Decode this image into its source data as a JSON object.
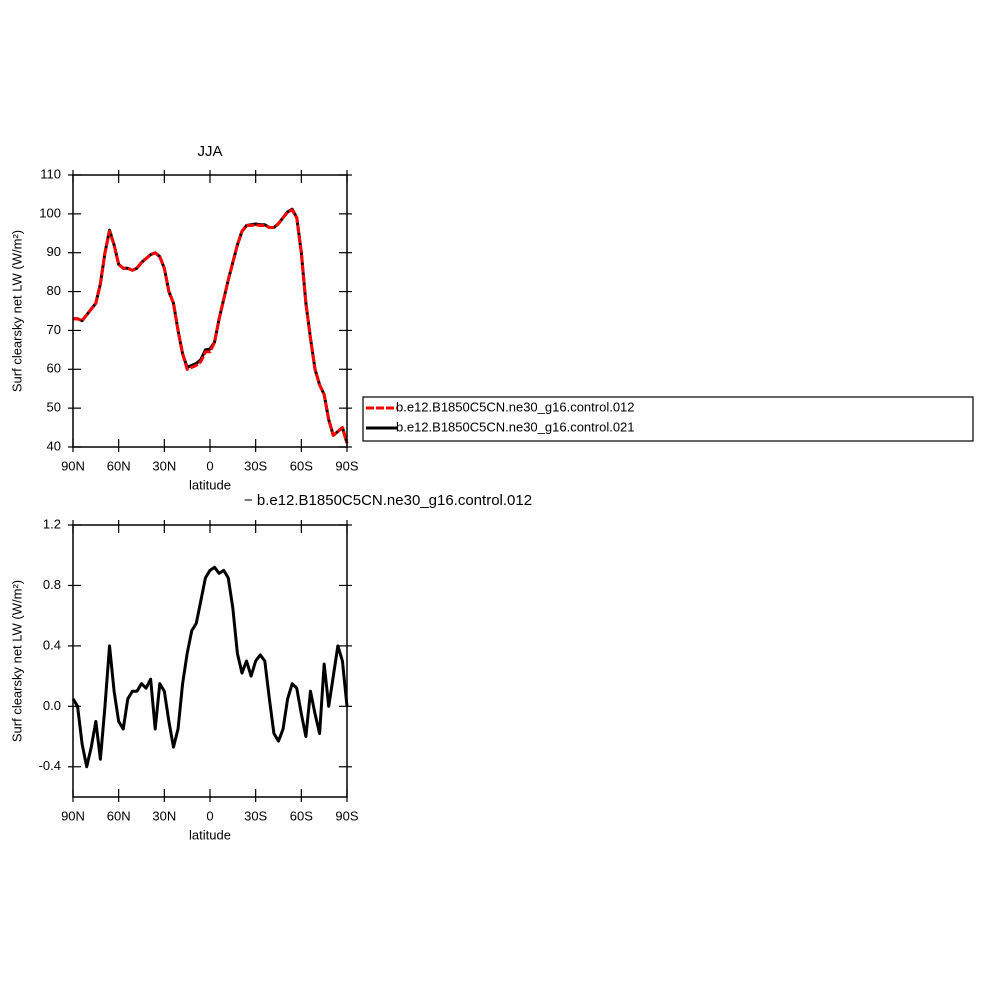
{
  "chart_data": [
    {
      "type": "line",
      "title": "JJA",
      "x_label": "latitude",
      "y_label": "Surf clearsky net LW (W/m²)",
      "x": [
        90,
        87,
        84,
        81,
        78,
        75,
        72,
        69,
        66,
        63,
        60,
        57,
        54,
        51,
        48,
        45,
        42,
        39,
        36,
        33,
        30,
        27,
        24,
        21,
        18,
        15,
        12,
        9,
        6,
        3,
        0,
        -3,
        -6,
        -9,
        -12,
        -15,
        -18,
        -21,
        -24,
        -27,
        -30,
        -33,
        -36,
        -39,
        -42,
        -45,
        -48,
        -51,
        -54,
        -57,
        -60,
        -63,
        -66,
        -69,
        -72,
        -75,
        -78,
        -81,
        -84,
        -87,
        -90
      ],
      "xlim": [
        90,
        -90
      ],
      "xticks": [
        {
          "value": 90,
          "label": "90N"
        },
        {
          "value": 60,
          "label": "60N"
        },
        {
          "value": 30,
          "label": "30N"
        },
        0,
        {
          "value": -30,
          "label": "30S"
        },
        {
          "value": -60,
          "label": "60S"
        },
        {
          "value": -90,
          "label": "90S"
        }
      ],
      "ylim": [
        40,
        110
      ],
      "yticks": [
        40,
        50,
        60,
        70,
        80,
        90,
        100,
        110
      ],
      "legend": "right",
      "series": [
        {
          "name": "b.e12.B1850C5CN.ne30_g16.control.012",
          "color": "#ff0000",
          "style": "dashed",
          "values": [
            73,
            73,
            72.5,
            74,
            75.5,
            77,
            82,
            90,
            95.5,
            92,
            87,
            86,
            86,
            85.5,
            86,
            87.5,
            88.5,
            89.5,
            90,
            89,
            86,
            80,
            77,
            70,
            64,
            60,
            60.5,
            61,
            62,
            64.5,
            64.5,
            67,
            73,
            78,
            83,
            87.5,
            92,
            95.5,
            97,
            97,
            97.2,
            97,
            97,
            96.5,
            96.5,
            97.5,
            99,
            100.5,
            101,
            99,
            90,
            77,
            68,
            60,
            56,
            53.5,
            47,
            43,
            44,
            45,
            41
          ]
        },
        {
          "name": "b.e12.B1850C5CN.ne30_g16.control.021",
          "color": "#000000",
          "style": "solid",
          "values": [
            73,
            73,
            72.5,
            74,
            75.5,
            77,
            82,
            90,
            95.8,
            92,
            87,
            86,
            86,
            85.5,
            86,
            87.5,
            88.5,
            89.5,
            90,
            89,
            86,
            80,
            77,
            70,
            64,
            60.5,
            61,
            61.5,
            62.5,
            65,
            65.2,
            67,
            73,
            78,
            83,
            87.5,
            92,
            95.5,
            97,
            97.2,
            97.4,
            97.2,
            97.2,
            96.5,
            96.5,
            97.5,
            99,
            100.5,
            101.2,
            99,
            90,
            77,
            68,
            60,
            56,
            53.5,
            47,
            43,
            44,
            45,
            41
          ]
        }
      ]
    },
    {
      "type": "line",
      "title": "− b.e12.B1850C5CN.ne30_g16.control.012",
      "x_label": "latitude",
      "y_label": "Surf clearsky net LW (W/m²)",
      "x": [
        90,
        87,
        84,
        81,
        78,
        75,
        72,
        69,
        66,
        63,
        60,
        57,
        54,
        51,
        48,
        45,
        42,
        39,
        36,
        33,
        30,
        27,
        24,
        21,
        18,
        15,
        12,
        9,
        6,
        3,
        0,
        -3,
        -6,
        -9,
        -12,
        -15,
        -18,
        -21,
        -24,
        -27,
        -30,
        -33,
        -36,
        -39,
        -42,
        -45,
        -48,
        -51,
        -54,
        -57,
        -60,
        -63,
        -66,
        -69,
        -72,
        -75,
        -78,
        -81,
        -84,
        -87,
        -90
      ],
      "xlim": [
        90,
        -90
      ],
      "xticks": [
        {
          "value": 90,
          "label": "90N"
        },
        {
          "value": 60,
          "label": "60N"
        },
        {
          "value": 30,
          "label": "30N"
        },
        0,
        {
          "value": -30,
          "label": "30S"
        },
        {
          "value": -60,
          "label": "60S"
        },
        {
          "value": -90,
          "label": "90S"
        }
      ],
      "ylim": [
        -0.6,
        1.2
      ],
      "yticks": [
        -0.4,
        {
          "value": 0,
          "label": "0.0"
        },
        0.4,
        0.8,
        1.2
      ],
      "series": [
        {
          "color": "#000000",
          "style": "solid",
          "values": [
            0.05,
            0,
            -0.25,
            -0.4,
            -0.27,
            -0.1,
            -0.35,
            0,
            0.4,
            0.1,
            -0.1,
            -0.15,
            0.05,
            0.1,
            0.1,
            0.15,
            0.12,
            0.18,
            -0.15,
            0.15,
            0.1,
            -0.1,
            -0.27,
            -0.15,
            0.15,
            0.35,
            0.5,
            0.55,
            0.7,
            0.85,
            0.9,
            0.92,
            0.88,
            0.9,
            0.85,
            0.65,
            0.35,
            0.22,
            0.3,
            0.2,
            0.3,
            0.34,
            0.3,
            0.05,
            -0.18,
            -0.23,
            -0.15,
            0.05,
            0.15,
            0.12,
            -0.05,
            -0.2,
            0.1,
            -0.05,
            -0.18,
            0.28,
            0,
            0.2,
            0.4,
            0.3,
            0
          ]
        }
      ]
    }
  ]
}
